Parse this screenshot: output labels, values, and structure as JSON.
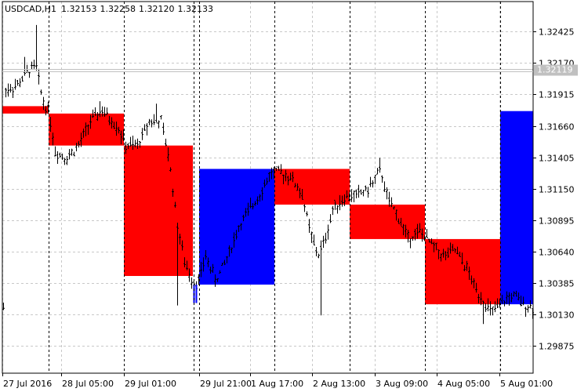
{
  "chart_data": {
    "type": "bar",
    "title": "USDCAD,H1",
    "ohlc": {
      "open": "1.32153",
      "high": "1.32258",
      "low": "1.32120",
      "close": "1.32133"
    },
    "current_price": 1.32119,
    "current_price_label": "1.32119",
    "y_ticks": [
      "1.32425",
      "1.32170",
      "1.31915",
      "1.31660",
      "1.31405",
      "1.31150",
      "1.30895",
      "1.30640",
      "1.30385",
      "1.30130",
      "1.29875"
    ],
    "ylim": [
      1.2965,
      1.3267
    ],
    "x_ticks": [
      "27 Jul 2016",
      "28 Jul 05:00",
      "29 Jul 01:00",
      "29 Jul 21:00",
      "1 Aug 17:00",
      "2 Aug 13:00",
      "3 Aug 09:00",
      "4 Aug 05:00",
      "5 Aug 01:00"
    ],
    "session_blocks": [
      {
        "color": "red",
        "high": 1.3182,
        "low": 1.3176
      },
      {
        "color": "red",
        "high": 1.3176,
        "low": 1.315
      },
      {
        "color": "red",
        "high": 1.315,
        "low": 1.3044
      },
      {
        "color": "blue",
        "high": 1.3131,
        "low": 1.3037
      },
      {
        "color": "red",
        "high": 1.3131,
        "low": 1.3102
      },
      {
        "color": "red",
        "high": 1.3102,
        "low": 1.3074
      },
      {
        "color": "red",
        "high": 1.3074,
        "low": 1.3021
      },
      {
        "color": "blue",
        "high": 1.3178,
        "low": 1.3021
      }
    ],
    "colors": {
      "bull": "#0000ff",
      "bear": "#ff0000",
      "bars": "#000000",
      "grid": "#c8c8c8",
      "price_label": "#c0c0c0"
    }
  }
}
